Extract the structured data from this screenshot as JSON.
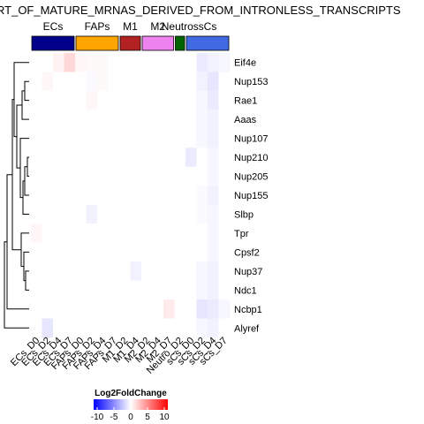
{
  "chart_data": {
    "type": "heatmap",
    "title": "RT_OF_MATURE_MRNAS_DERIVED_FROM_INTRONLESS_TRANSCRIPTS",
    "groups": [
      {
        "name": "ECs",
        "color": "#00008B",
        "columns": 4
      },
      {
        "name": "FAPs",
        "color": "#FFA500",
        "columns": 4
      },
      {
        "name": "M1",
        "color": "#B22222",
        "columns": 2
      },
      {
        "name": "M2",
        "color": "#EE82EE",
        "columns": 3
      },
      {
        "name": "Neutros",
        "color": "#006400",
        "columns": 1
      },
      {
        "name": "sCs",
        "color": "#4169E1",
        "columns": 4
      }
    ],
    "columns": [
      "ECs_D0",
      "ECs_D2",
      "ECs_D4",
      "ECs_D7",
      "FAPs_D0",
      "FAPs_D2",
      "FAPs_D4",
      "FAPs_D7",
      "M1_D2",
      "M1_D4",
      "M2_D2",
      "M2_D4",
      "M2_D7",
      "Neutro_D2",
      "sCs_D0",
      "sCs_D2",
      "sCs_D4",
      "sCs_D7"
    ],
    "rows": [
      "Eif4e",
      "Nup153",
      "Rae1",
      "Aaas",
      "Nup107",
      "Nup210",
      "Nup205",
      "Nup155",
      "Slbp",
      "Tpr",
      "Cpsf2",
      "Nup37",
      "Ndc1",
      "Ncbp1",
      "Alyref"
    ],
    "values": [
      [
        0,
        0,
        0.5,
        1.5,
        0.3,
        0.2,
        0.2,
        0,
        0,
        0,
        0,
        0,
        0,
        0,
        0,
        -0.8,
        -0.5,
        -0.3
      ],
      [
        0,
        0.3,
        0,
        0,
        0,
        -0.2,
        0.2,
        0,
        0,
        0,
        0,
        0,
        0,
        0,
        0,
        -0.5,
        -1.0,
        0
      ],
      [
        0,
        0,
        0,
        0,
        0,
        0.3,
        0,
        0,
        0,
        0,
        0,
        0,
        0,
        0,
        0,
        -0.3,
        -0.8,
        0
      ],
      [
        0,
        0,
        0,
        0,
        0,
        0,
        0,
        0,
        0,
        0,
        0,
        0,
        0,
        0,
        0,
        -0.3,
        -0.5,
        0
      ],
      [
        0,
        0,
        0,
        0,
        0,
        0,
        0,
        0,
        0,
        0,
        0,
        0,
        0,
        0,
        0,
        -0.3,
        -0.5,
        0
      ],
      [
        0,
        0,
        0,
        0,
        0,
        0,
        0,
        0,
        0,
        0,
        0,
        0,
        0,
        0,
        -0.8,
        0,
        -0.3,
        0
      ],
      [
        0,
        0,
        0,
        0,
        0,
        0,
        0,
        0,
        0,
        0,
        0,
        0,
        0,
        0,
        0,
        0,
        -0.3,
        0
      ],
      [
        0,
        0,
        0,
        0,
        0,
        0,
        0,
        0,
        0,
        0,
        0,
        0,
        0,
        0,
        0,
        -0.2,
        -0.5,
        0
      ],
      [
        0,
        0,
        0,
        0,
        0,
        -0.5,
        0,
        0,
        0,
        0,
        0,
        0,
        0,
        0,
        0,
        -0.2,
        -0.3,
        0
      ],
      [
        0.3,
        0,
        0,
        0,
        0,
        0,
        0,
        0,
        0,
        0,
        0,
        0,
        0,
        0,
        0,
        0,
        -0.3,
        0
      ],
      [
        0,
        0,
        0,
        0,
        0,
        0,
        0,
        0,
        0,
        0,
        0,
        0,
        0,
        0,
        0,
        0,
        -0.3,
        0
      ],
      [
        0,
        0,
        0,
        0,
        0,
        0,
        0,
        0,
        0,
        -0.5,
        0,
        0,
        0,
        0,
        0,
        -0.3,
        -0.5,
        0
      ],
      [
        0,
        0,
        0,
        0,
        0,
        0,
        0,
        0,
        0,
        0,
        0,
        0,
        0,
        0,
        0,
        -0.3,
        -0.5,
        0
      ],
      [
        0,
        0,
        0,
        0,
        0,
        0,
        0,
        0,
        0,
        0,
        0,
        0,
        0.8,
        0,
        0,
        -1.0,
        -0.8,
        -0.3
      ],
      [
        0,
        -1.0,
        0,
        0,
        0,
        0,
        0,
        0,
        0,
        0,
        0,
        0,
        0,
        0,
        0,
        -0.3,
        -0.5,
        0
      ]
    ],
    "legend": {
      "title": "Log2FoldChange",
      "range": [
        -10,
        10
      ],
      "ticks": [
        "-10",
        "-5",
        "0",
        "5",
        "10"
      ],
      "colors": {
        "low": "#0000FF",
        "mid": "#FFFFFF",
        "high": "#FF0000"
      }
    }
  }
}
